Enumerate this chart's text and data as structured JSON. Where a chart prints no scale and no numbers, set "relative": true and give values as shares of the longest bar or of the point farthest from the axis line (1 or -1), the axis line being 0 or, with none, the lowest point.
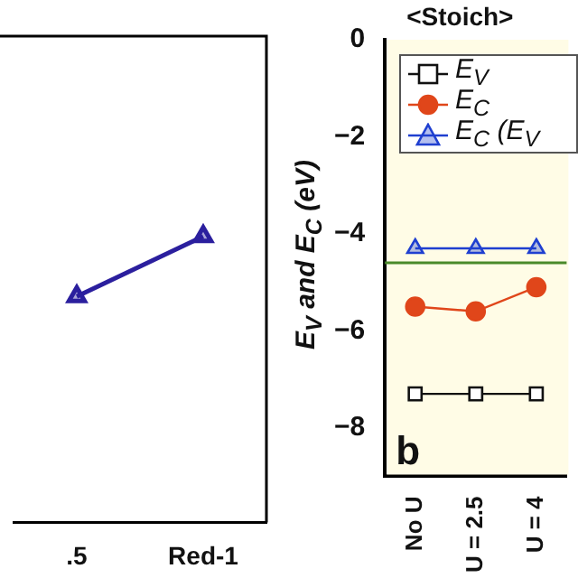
{
  "chart_data": [
    {
      "type": "line",
      "relative": true,
      "categories": [
        ".5",
        "Red-1"
      ],
      "marker": "triangle",
      "series": [
        {
          "color": "#2b1f9e",
          "values": [
            0.79,
            1
          ]
        }
      ]
    },
    {
      "type": "line",
      "title": "<Stoich>",
      "ylabel": "E$_{V}$ and E$_{C}$ (eV)",
      "categories": [
        "No U",
        "U = 2.5",
        "U = 4"
      ],
      "series": [
        {
          "name": "E$_{V}$",
          "color": "#111111",
          "marker": "square",
          "values": [
            -7.3,
            -7.3,
            -7.3
          ]
        },
        {
          "name": "E$_{C}$",
          "color": "#e0461a",
          "marker": "circle",
          "values": [
            -5.5,
            -5.6,
            -5.1
          ]
        },
        {
          "name": "E$_{C}$ (E$_{V}$",
          "color": "#1f3fd0",
          "marker": "triangle",
          "values": [
            -4.3,
            -4.3,
            -4.3
          ]
        }
      ],
      "ylim": [
        -9,
        0
      ],
      "yticks": [
        0,
        -2,
        -4,
        -6,
        -8
      ],
      "grid": false,
      "legend": "top left",
      "ref_lines": [
        {
          "axis": "y",
          "value": -4.6,
          "color": "#4a8a2a"
        }
      ],
      "annotations": [
        "b"
      ]
    }
  ]
}
